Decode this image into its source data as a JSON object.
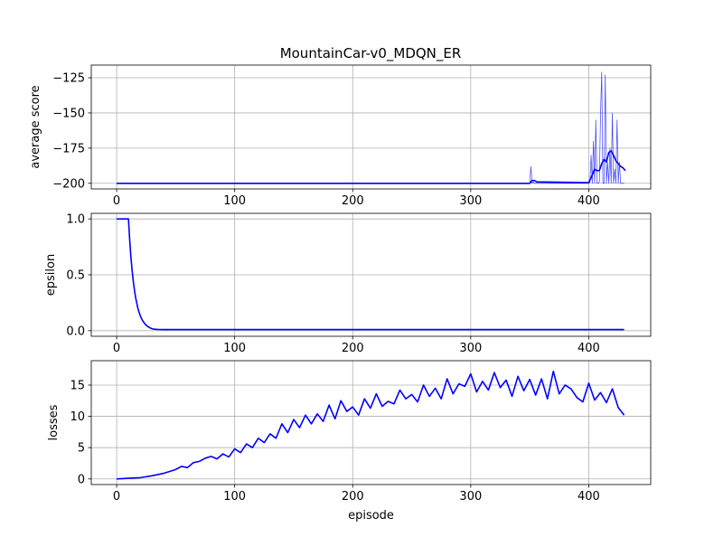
{
  "chart_data": [
    {
      "type": "line",
      "title": "MountainCar-v0_MDQN_ER",
      "xlabel": "",
      "ylabel": "average score",
      "xlim": [
        -21.5,
        452.5
      ],
      "ylim": [
        -204,
        -116
      ],
      "xticks": [
        0,
        100,
        200,
        300,
        400
      ],
      "yticks": [
        -200,
        -175,
        -150,
        -125
      ],
      "grid": true,
      "color": "#0000ff",
      "series": [
        {
          "style": "raw-thin",
          "x": [
            0,
            350,
            351,
            352,
            353,
            354,
            400,
            401,
            402,
            403,
            404,
            405,
            406,
            407,
            408,
            409,
            410,
            411,
            412,
            413,
            414,
            415,
            416,
            417,
            418,
            419,
            420,
            421,
            422,
            423,
            424,
            425,
            426,
            427,
            428,
            429,
            430
          ],
          "y": [
            -200,
            -200,
            -188,
            -200,
            -199,
            -200,
            -200,
            -199,
            -180,
            -200,
            -170,
            -200,
            -155,
            -200,
            -200,
            -199,
            -150,
            -121,
            -200,
            -200,
            -123,
            -200,
            -185,
            -200,
            -175,
            -200,
            -150,
            -200,
            -190,
            -200,
            -155,
            -200,
            -185,
            -200,
            -200,
            -200,
            -200
          ]
        },
        {
          "style": "average",
          "x": [
            0,
            350,
            352,
            354,
            356,
            400,
            402,
            404,
            405,
            407,
            409,
            411,
            413,
            415,
            417,
            419,
            421,
            423,
            425,
            427,
            429,
            431
          ],
          "y": [
            -200,
            -200,
            -198,
            -198,
            -199,
            -199.5,
            -196,
            -192,
            -190,
            -191,
            -191,
            -186,
            -183,
            -185,
            -178,
            -177,
            -180,
            -184,
            -186,
            -188,
            -189,
            -191
          ]
        }
      ]
    },
    {
      "type": "line",
      "title": "",
      "xlabel": "",
      "ylabel": "epsilon",
      "xlim": [
        -21.5,
        452.5
      ],
      "ylim": [
        -0.05,
        1.05
      ],
      "xticks": [
        0,
        100,
        200,
        300,
        400
      ],
      "yticks": [
        0.0,
        0.5,
        1.0
      ],
      "ytick_labels": [
        "0.0",
        "0.5",
        "1.0"
      ],
      "grid": true,
      "color": "#0000ff",
      "series": [
        {
          "x": [
            0,
            10,
            11,
            12,
            13,
            14,
            15,
            16,
            17,
            18,
            19,
            20,
            21,
            22,
            23,
            24,
            25,
            26,
            27,
            28,
            29,
            30,
            31,
            32,
            35,
            40,
            430
          ],
          "y": [
            1.0,
            1.0,
            0.82,
            0.67,
            0.55,
            0.45,
            0.37,
            0.3,
            0.25,
            0.2,
            0.165,
            0.135,
            0.11,
            0.09,
            0.075,
            0.06,
            0.05,
            0.04,
            0.033,
            0.027,
            0.022,
            0.018,
            0.015,
            0.013,
            0.011,
            0.01,
            0.01
          ]
        }
      ]
    },
    {
      "type": "line",
      "title": "",
      "xlabel": "episode",
      "ylabel": "losses",
      "xlim": [
        -21.5,
        452.5
      ],
      "ylim": [
        -0.9,
        18.9
      ],
      "xticks": [
        0,
        100,
        200,
        300,
        400
      ],
      "yticks": [
        0,
        5,
        10,
        15
      ],
      "grid": true,
      "color": "#0000ff",
      "series": [
        {
          "x": [
            0,
            10,
            20,
            30,
            40,
            45,
            50,
            55,
            60,
            65,
            70,
            75,
            80,
            85,
            90,
            95,
            100,
            105,
            110,
            115,
            120,
            125,
            130,
            135,
            140,
            145,
            150,
            155,
            160,
            165,
            170,
            175,
            180,
            185,
            190,
            195,
            200,
            205,
            210,
            215,
            220,
            225,
            230,
            235,
            240,
            245,
            250,
            255,
            260,
            265,
            270,
            275,
            280,
            285,
            290,
            295,
            300,
            305,
            310,
            315,
            320,
            325,
            330,
            335,
            340,
            345,
            350,
            355,
            360,
            365,
            370,
            375,
            380,
            385,
            390,
            395,
            400,
            405,
            410,
            415,
            420,
            425,
            430
          ],
          "y": [
            0.0,
            0.1,
            0.2,
            0.5,
            0.9,
            1.2,
            1.5,
            2.0,
            1.8,
            2.6,
            2.8,
            3.3,
            3.6,
            3.2,
            4.0,
            3.5,
            4.8,
            4.2,
            5.6,
            5.0,
            6.5,
            5.8,
            7.2,
            6.5,
            8.8,
            7.4,
            9.5,
            8.2,
            10.2,
            8.8,
            10.4,
            9.2,
            11.8,
            9.6,
            12.5,
            10.8,
            11.5,
            10.2,
            12.8,
            11.3,
            13.6,
            11.6,
            12.4,
            12.0,
            14.2,
            12.8,
            13.5,
            12.3,
            15.0,
            13.2,
            14.5,
            12.8,
            16.0,
            13.6,
            15.2,
            14.8,
            16.8,
            13.9,
            15.6,
            14.2,
            17.0,
            14.6,
            15.8,
            13.2,
            16.4,
            14.1,
            15.9,
            13.4,
            16.0,
            12.8,
            17.2,
            13.6,
            15.0,
            14.4,
            13.0,
            12.3,
            15.3,
            12.6,
            13.8,
            12.2,
            14.4,
            11.4,
            10.2
          ]
        }
      ]
    }
  ]
}
